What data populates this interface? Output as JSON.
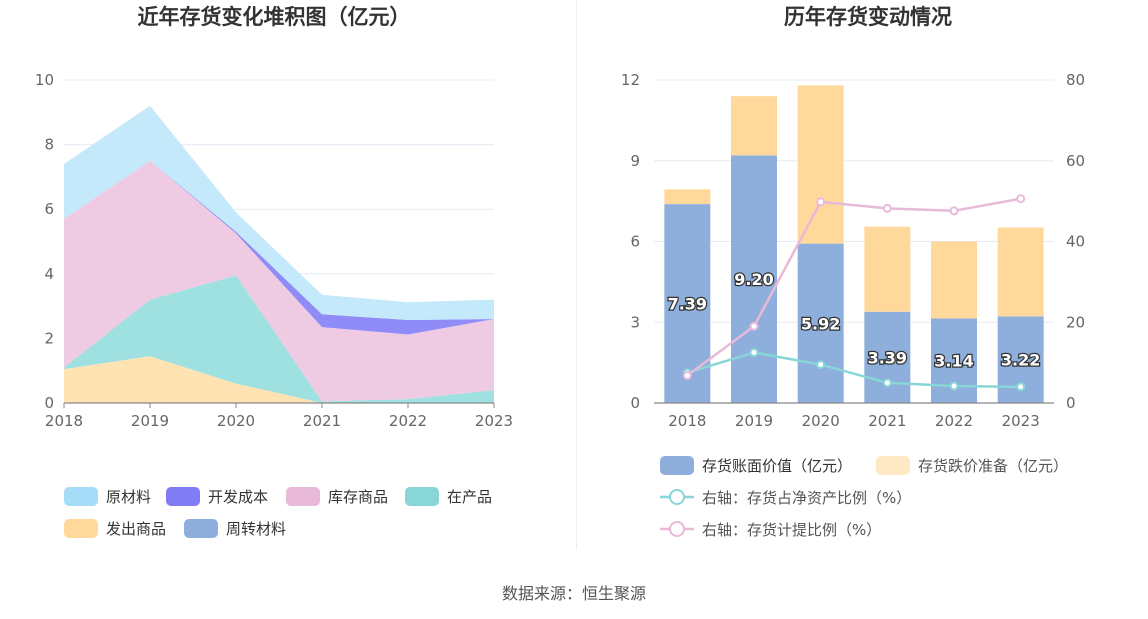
{
  "chart_data": [
    {
      "type": "area",
      "stacked": true,
      "title": "近年存货变化堆积图（亿元）",
      "categories": [
        "2018",
        "2019",
        "2020",
        "2021",
        "2022",
        "2023"
      ],
      "ylim": [
        0,
        10
      ],
      "yticks": [
        "0",
        "2",
        "4",
        "6",
        "8",
        "10"
      ],
      "grid": true,
      "legend_position": "bottom",
      "series": [
        {
          "name": "发出商品",
          "color": "#ffe3b3",
          "values": [
            1.05,
            1.45,
            0.6,
            0.0,
            0.0,
            0.0
          ]
        },
        {
          "name": "在产品",
          "color": "#9fe0e0",
          "values": [
            0.05,
            1.75,
            3.35,
            0.05,
            0.12,
            0.4
          ]
        },
        {
          "name": "库存商品",
          "color": "#efcae3",
          "values": [
            4.6,
            4.3,
            1.3,
            2.3,
            2.0,
            2.2
          ]
        },
        {
          "name": "开发成本",
          "color": "#8f8cf7",
          "values": [
            0.0,
            0.0,
            0.05,
            0.4,
            0.45,
            0.0
          ]
        },
        {
          "name": "周转材料",
          "color": "#9fb6e0",
          "values": [
            0.0,
            0.0,
            0.0,
            0.0,
            0.0,
            0.0
          ]
        },
        {
          "name": "原材料",
          "color": "#c3e9fb",
          "values": [
            1.7,
            1.7,
            0.6,
            0.6,
            0.55,
            0.6
          ]
        }
      ],
      "legend_order": [
        "原材料",
        "开发成本",
        "库存商品",
        "在产品",
        "发出商品",
        "周转材料"
      ],
      "legend_colors": {
        "原材料": "#a5dcf7",
        "开发成本": "#7f7cf4",
        "库存商品": "#e8b9d8",
        "在产品": "#88d6d8",
        "发出商品": "#ffd99b",
        "周转材料": "#8eaedc"
      }
    },
    {
      "type": "bar",
      "stacked": true,
      "title": "历年存货变动情况",
      "categories": [
        "2018",
        "2019",
        "2020",
        "2021",
        "2022",
        "2023"
      ],
      "ylim": [
        0,
        12
      ],
      "yticks": [
        "0",
        "3",
        "6",
        "9",
        "12"
      ],
      "y2lim": [
        0,
        80
      ],
      "y2ticks": [
        "0",
        "20",
        "40",
        "60",
        "80"
      ],
      "grid": true,
      "legend_position": "bottom",
      "series": [
        {
          "name": "存货账面价值（亿元）",
          "color": "#8eaedc",
          "values": [
            7.39,
            9.2,
            5.92,
            3.39,
            3.14,
            3.22
          ],
          "labels": [
            "7.39",
            "9.20",
            "5.92",
            "3.39",
            "3.14",
            "3.22"
          ]
        },
        {
          "name": "存货跌价准备（亿元）",
          "color": "#ffd99b",
          "values": [
            0.55,
            2.2,
            5.88,
            3.16,
            2.86,
            3.3
          ]
        }
      ],
      "line_series": [
        {
          "name": "右轴：存货占净资产比例（%）",
          "color": "#88d6d8",
          "values": [
            7.5,
            12.5,
            9.5,
            5.0,
            4.2,
            4.0
          ]
        },
        {
          "name": "右轴：存货计提比例（%）",
          "color": "#e8b9d8",
          "values": [
            6.8,
            19.0,
            49.8,
            48.2,
            47.6,
            50.6
          ]
        }
      ]
    }
  ],
  "footer": {
    "source": "数据来源：恒生聚源"
  }
}
